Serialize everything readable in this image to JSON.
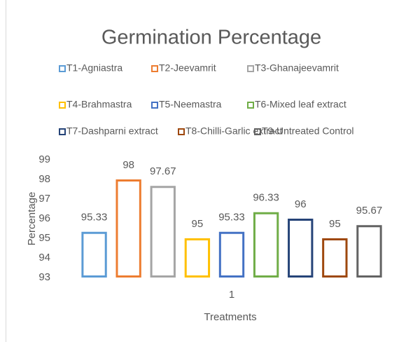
{
  "chart_data": {
    "type": "bar",
    "title": "Germination Percentage",
    "categories": [
      "1"
    ],
    "series": [
      {
        "name": "T1-Agniastra",
        "color": "#5b9bd5",
        "values": [
          95.33
        ]
      },
      {
        "name": "T2-Jeevamrit",
        "color": "#ed7d31",
        "values": [
          98
        ]
      },
      {
        "name": "T3-Ghanajeevamrit",
        "color": "#a5a5a5",
        "values": [
          97.67
        ]
      },
      {
        "name": "T4-Brahmastra",
        "color": "#ffc000",
        "values": [
          95
        ]
      },
      {
        "name": "T5-Neemastra",
        "color": "#4472c4",
        "values": [
          95.33
        ]
      },
      {
        "name": "T6-Mixed leaf extract",
        "color": "#70ad47",
        "values": [
          96.33
        ]
      },
      {
        "name": "T7-Dashparni extract",
        "color": "#264478",
        "values": [
          96
        ]
      },
      {
        "name": "T8-Chilli-Garlic extract",
        "color": "#9e480e",
        "values": [
          95
        ]
      },
      {
        "name": "T9-Untreated Control",
        "color": "#636363",
        "values": [
          95.67
        ]
      }
    ],
    "xlabel": "Treatments",
    "ylabel": "Percentage",
    "ylim": [
      93,
      99
    ],
    "yticks": [
      93,
      94,
      95,
      96,
      97,
      98,
      99
    ],
    "grid": false,
    "legend": "top"
  }
}
